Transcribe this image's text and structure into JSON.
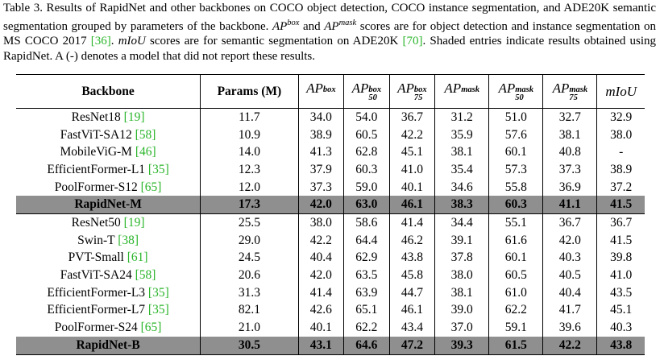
{
  "caption": [
    {
      "text": "Table 3.  Results of RapidNet and other backbones on COCO object detection, COCO instance segmentation, and ADE20K semantic segmentation grouped by parameters of the backbone. ",
      "kind": "plain"
    },
    {
      "text": "AP",
      "kind": "math"
    },
    {
      "text": "box",
      "kind": "sup"
    },
    {
      "text": " and ",
      "kind": "plain"
    },
    {
      "text": "AP",
      "kind": "math"
    },
    {
      "text": "mask",
      "kind": "sup"
    },
    {
      "text": " scores are for object detection and instance segmentation on MS COCO 2017 ",
      "kind": "plain"
    },
    {
      "text": "[36]",
      "kind": "cite"
    },
    {
      "text": ". ",
      "kind": "plain"
    },
    {
      "text": "mIoU",
      "kind": "math"
    },
    {
      "text": " scores are for semantic segmentation on ADE20K ",
      "kind": "plain"
    },
    {
      "text": "[70]",
      "kind": "cite"
    },
    {
      "text": ". Shaded entries indicate results obtained using RapidNet. A (-) denotes a model that did not report these results.",
      "kind": "plain"
    }
  ],
  "table": {
    "header": [
      {
        "text": "Backbone"
      },
      {
        "text": "Params (M)"
      },
      {
        "text": "AP",
        "sup": "box"
      },
      {
        "text": "AP",
        "sup": "box",
        "sub": "50"
      },
      {
        "text": "AP",
        "sup": "box",
        "sub": "75"
      },
      {
        "text": "AP",
        "sup": "mask"
      },
      {
        "text": "AP",
        "sup": "mask",
        "sub": "50"
      },
      {
        "text": "AP",
        "sup": "mask",
        "sub": "75"
      },
      {
        "text": "mIoU"
      }
    ],
    "rows": [
      {
        "name": "ResNet18",
        "ref": "[19]",
        "values": [
          "11.7",
          "34.0",
          "54.0",
          "36.7",
          "31.2",
          "51.0",
          "32.7",
          "32.9"
        ]
      },
      {
        "name": "FastViT-SA12",
        "ref": "[58]",
        "values": [
          "10.9",
          "38.9",
          "60.5",
          "42.2",
          "35.9",
          "57.6",
          "38.1",
          "38.0"
        ]
      },
      {
        "name": "MobileViG-M",
        "ref": "[46]",
        "values": [
          "14.0",
          "41.3",
          "62.8",
          "45.1",
          "38.1",
          "60.1",
          "40.8",
          "-"
        ]
      },
      {
        "name": "EfficientFormer-L1",
        "ref": "[35]",
        "values": [
          "12.3",
          "37.9",
          "60.3",
          "41.0",
          "35.4",
          "57.3",
          "37.3",
          "38.9"
        ]
      },
      {
        "name": "PoolFormer-S12",
        "ref": "[65]",
        "values": [
          "12.0",
          "37.3",
          "59.0",
          "40.1",
          "34.6",
          "55.8",
          "36.9",
          "37.2"
        ]
      },
      {
        "name": "RapidNet-M",
        "shaded": true,
        "values": [
          "17.3",
          "42.0",
          "63.0",
          "46.1",
          "38.3",
          "60.3",
          "41.1",
          "41.5"
        ]
      },
      {
        "name": "ResNet50",
        "ref": "[19]",
        "values": [
          "25.5",
          "38.0",
          "58.6",
          "41.4",
          "34.4",
          "55.1",
          "36.7",
          "36.7"
        ]
      },
      {
        "name": "Swin-T",
        "ref": "[38]",
        "values": [
          "29.0",
          "42.2",
          "64.4",
          "46.2",
          "39.1",
          "61.6",
          "42.0",
          "41.5"
        ]
      },
      {
        "name": "PVT-Small",
        "ref": "[61]",
        "values": [
          "24.5",
          "40.4",
          "62.9",
          "43.8",
          "37.8",
          "60.1",
          "40.3",
          "39.8"
        ]
      },
      {
        "name": "FastViT-SA24",
        "ref": "[58]",
        "values": [
          "20.6",
          "42.0",
          "63.5",
          "45.8",
          "38.0",
          "60.5",
          "40.5",
          "41.0"
        ]
      },
      {
        "name": "EfficientFormer-L3",
        "ref": "[35]",
        "values": [
          "31.3",
          "41.4",
          "63.9",
          "44.7",
          "38.1",
          "61.0",
          "40.4",
          "43.5"
        ]
      },
      {
        "name": "EfficientFormer-L7",
        "ref": "[35]",
        "values": [
          "82.1",
          "42.6",
          "65.1",
          "46.1",
          "39.0",
          "62.2",
          "41.7",
          "45.1"
        ]
      },
      {
        "name": "PoolFormer-S24",
        "ref": "[65]",
        "values": [
          "21.0",
          "40.1",
          "62.2",
          "43.4",
          "37.0",
          "59.1",
          "39.6",
          "40.3"
        ]
      },
      {
        "name": "RapidNet-B",
        "shaded": true,
        "values": [
          "30.5",
          "43.1",
          "64.6",
          "47.2",
          "39.3",
          "61.5",
          "42.2",
          "43.8"
        ]
      }
    ]
  }
}
